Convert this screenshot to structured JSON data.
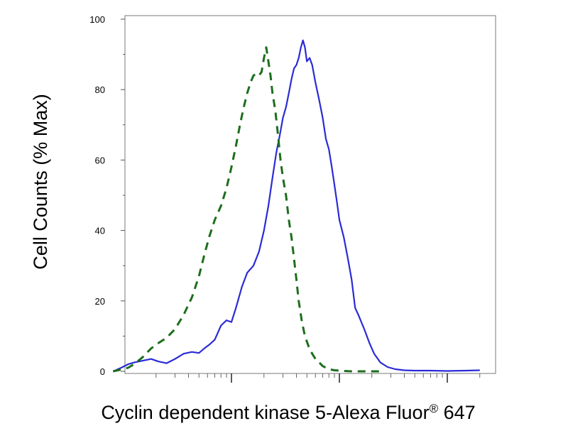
{
  "chart_data": {
    "type": "line",
    "title": "",
    "xlabel": "Cyclin dependent kinase 5-Alexa Fluor",
    "xlabel_superscript": "®",
    "xlabel_suffix": " 647",
    "ylabel": "Cell Counts (% Max)",
    "x_scale": "log",
    "x_major_ticks": [
      1000,
      100000
    ],
    "ylim": [
      0,
      100
    ],
    "y_ticks": [
      "0",
      "20",
      "40",
      "60",
      "80",
      "100"
    ],
    "y_tick_values": [
      0,
      20,
      40,
      60,
      80,
      100
    ],
    "grid": false,
    "series": [
      {
        "style": "solid",
        "color": "#2b2bd6",
        "x": [
          80,
          95,
          110,
          125,
          150,
          180,
          210,
          250,
          300,
          360,
          430,
          500,
          560,
          620,
          700,
          800,
          900,
          1000,
          1100,
          1250,
          1400,
          1600,
          1800,
          2000,
          2200,
          2400,
          2600,
          2800,
          3000,
          3200,
          3400,
          3600,
          3800,
          4000,
          4200,
          4400,
          4600,
          4800,
          5000,
          5300,
          5600,
          6000,
          6500,
          7000,
          7500,
          8000,
          8500,
          9000,
          9500,
          10000,
          11000,
          12000,
          13000,
          14000,
          15000,
          17000,
          19000,
          21000,
          24000,
          28000,
          33000,
          40000,
          50000,
          70000,
          100000,
          150000,
          200000
        ],
        "y": [
          0,
          1,
          2,
          2.5,
          3,
          3.5,
          2.8,
          2.3,
          3.5,
          5,
          5.5,
          5.2,
          6.5,
          7.5,
          9,
          13,
          14.5,
          14,
          18,
          24,
          28,
          30,
          34,
          40,
          47,
          55,
          62,
          67,
          72,
          75,
          79,
          83,
          86,
          87,
          89,
          92,
          94,
          92,
          88,
          89,
          87,
          82,
          77,
          72,
          66,
          63,
          58,
          53,
          48,
          43,
          38,
          32,
          26,
          18,
          16,
          12,
          8,
          5,
          2.5,
          1.2,
          0.6,
          0.3,
          0.2,
          0.2,
          0.1,
          0.2,
          0.3
        ]
      },
      {
        "style": "dashed",
        "color": "#1d6e1d",
        "x": [
          80,
          95,
          110,
          125,
          150,
          180,
          210,
          250,
          300,
          360,
          430,
          500,
          560,
          620,
          700,
          800,
          900,
          1000,
          1100,
          1200,
          1300,
          1400,
          1500,
          1600,
          1700,
          1800,
          1900,
          2000,
          2100,
          2200,
          2300,
          2400,
          2550,
          2700,
          2850,
          3000,
          3200,
          3400,
          3600,
          3800,
          4000,
          4200,
          4500,
          4800,
          5200,
          5600,
          6000,
          6500,
          7000,
          7500,
          8000,
          9000,
          10000,
          11000,
          12000,
          13500,
          15000,
          17000,
          20000,
          25000
        ],
        "y": [
          0,
          0.5,
          1,
          2,
          4,
          6.5,
          8,
          9.5,
          12,
          16,
          21,
          27,
          33,
          38,
          43,
          47,
          52,
          58,
          64,
          70,
          75,
          79,
          82,
          84,
          84.5,
          84,
          85,
          89,
          92,
          88,
          84,
          79,
          74,
          67,
          60,
          55,
          50,
          43,
          38,
          32,
          26,
          20,
          14,
          10,
          7,
          5,
          3.5,
          2.5,
          1.5,
          1,
          0.6,
          0.3,
          0.2,
          0.1,
          0.05,
          0,
          0,
          0,
          0,
          0
        ]
      }
    ]
  }
}
